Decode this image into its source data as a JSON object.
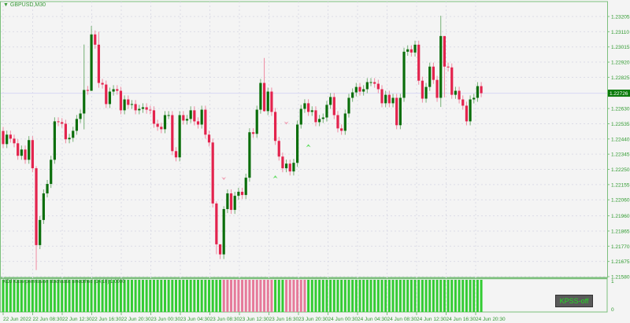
{
  "window": {
    "symbol_title": "GBPUSD,M30",
    "menu_icon": "triangle-down-icon"
  },
  "colors": {
    "frame": "#7cbf7c",
    "bull_body": "#0b6e0b",
    "bear_body": "#e3234d",
    "bull_wick": "#74b074",
    "bear_wick": "#f08aa2",
    "hist_up": "#33cc33",
    "hist_down": "#e67a9a",
    "price_tag": "#0a7a0a",
    "axis_text": "#2f9a2f"
  },
  "chart_data": {
    "type": "candlestick",
    "symbol": "GBPUSD",
    "timeframe": "M30",
    "ylim": [
      1.2158,
      1.23308
    ],
    "price_ticks": [
      "1.23205",
      "1.23110",
      "1.23015",
      "1.22920",
      "1.22825",
      "1.22630",
      "1.22535",
      "1.22440",
      "1.22345",
      "1.22250",
      "1.22155",
      "1.22060",
      "1.21960",
      "1.21865",
      "1.21770",
      "1.21675",
      "1.21580"
    ],
    "current_price": "1.22726",
    "time_ticks": [
      "22 Jun 2022",
      "22 Jun 08:30",
      "22 Jun 12:30",
      "22 Jun 16:30",
      "22 Jun 20:30",
      "23 Jun 00:30",
      "23 Jun 04:30",
      "23 Jun 08:30",
      "23 Jun 12:30",
      "23 Jun 16:30",
      "23 Jun 20:30",
      "24 Jun 00:30",
      "24 Jun 04:30",
      "24 Jun 08:30",
      "24 Jun 12:30",
      "24 Jun 16:30",
      "24 Jun 20:30"
    ],
    "first_open": 1.2249,
    "closes": [
      1.22408,
      1.22467,
      1.22442,
      1.22413,
      1.22335,
      1.22374,
      1.2231,
      1.22433,
      1.22257,
      1.21777,
      1.21934,
      1.221,
      1.22159,
      1.2231,
      1.2255,
      1.22545,
      1.22535,
      1.22438,
      1.22447,
      1.22491,
      1.22565,
      1.22599,
      1.22746,
      1.22741,
      1.23093,
      1.23029,
      1.2279,
      1.2278,
      1.22658,
      1.22736,
      1.22751,
      1.22741,
      1.22619,
      1.22687,
      1.22653,
      1.22658,
      1.22619,
      1.22628,
      1.22638,
      1.22623,
      1.22619,
      1.22535,
      1.22516,
      1.22501,
      1.22589,
      1.22589,
      1.22364,
      1.22325,
      1.22589,
      1.22555,
      1.22565,
      1.22619,
      1.2255,
      1.2253,
      1.22623,
      1.22467,
      1.22418,
      1.22037,
      1.21782,
      1.21719,
      1.22002,
      1.221,
      1.21997,
      1.22085,
      1.2211,
      1.2209,
      1.22198,
      1.22482,
      1.22472,
      1.22623,
      1.2279,
      1.22614,
      1.22736,
      1.22609,
      1.22428,
      1.2233,
      1.22257,
      1.22286,
      1.22237,
      1.22291,
      1.2253,
      1.22628,
      1.22663,
      1.22609,
      1.22619,
      1.22545,
      1.22565,
      1.22574,
      1.22653,
      1.22702,
      1.22589,
      1.22506,
      1.22491,
      1.22599,
      1.22697,
      1.22731,
      1.22765,
      1.22736,
      1.22751,
      1.22795,
      1.22795,
      1.22785,
      1.22751,
      1.22663,
      1.22716,
      1.22663,
      1.22697,
      1.22526,
      1.22697,
      1.22985,
      1.23,
      1.2298,
      1.23029,
      1.22804,
      1.22692,
      1.22765,
      1.22892,
      1.22809,
      1.22697,
      1.23083,
      1.22892,
      1.22887,
      1.22716,
      1.22741,
      1.22687,
      1.22648,
      1.2255,
      1.22687,
      1.22697,
      1.2277,
      1.22726
    ],
    "extremes": {
      "10": [
        1.2227,
        1.21621
      ],
      "23": [
        1.2303,
        1.225
      ],
      "25": [
        1.23146,
        1.2274
      ],
      "27": [
        1.2311,
        1.2276
      ],
      "59": [
        1.2205,
        1.2172
      ],
      "60": [
        1.2178,
        1.2169
      ],
      "61": [
        1.2202,
        1.2169
      ],
      "72": [
        1.22946,
        1.2261
      ],
      "120": [
        1.2321,
        1.2264
      ],
      "121": [
        1.2308,
        1.227
      ]
    },
    "signals": [
      {
        "candle": 61,
        "type": "sell",
        "price": 1.22193
      },
      {
        "candle": 78,
        "type": "sell",
        "price": 1.2254
      },
      {
        "candle": 75,
        "type": "buy",
        "price": 1.22203
      },
      {
        "candle": 84,
        "type": "buy",
        "price": 1.22398
      }
    ]
  },
  "indicator": {
    "label": "KDJ Kase permission stochastic smoothed (14,10) 1.0000",
    "axis_max": "1",
    "axis_min": "0",
    "down_ranges": [
      [
        61,
        74
      ],
      [
        78,
        83
      ]
    ],
    "value": 1
  },
  "kpss_button": {
    "label": "KPSS-off"
  }
}
